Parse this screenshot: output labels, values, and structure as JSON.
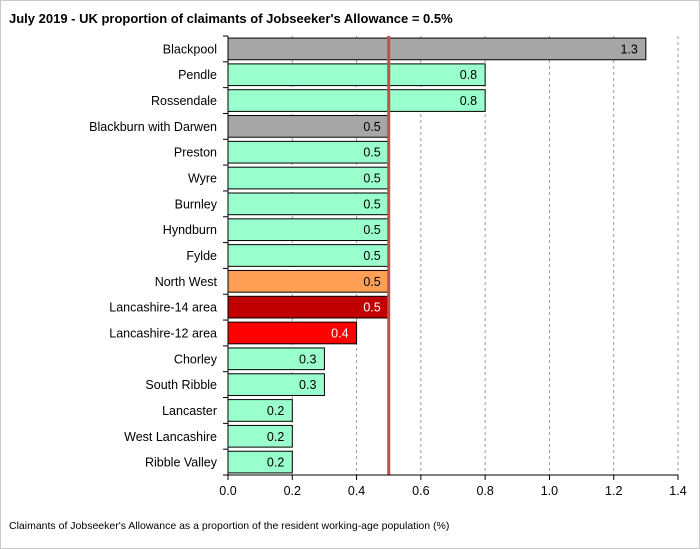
{
  "chart_data": {
    "type": "bar",
    "orientation": "horizontal",
    "title": "July 2019  - UK proportion of claimants of Jobseeker's Allowance = 0.5%",
    "footnote": "Claimants  of Jobseeker's Allowance as a proportion of the resident working-age population (%)",
    "categories": [
      "Blackpool",
      "Pendle",
      "Rossendale",
      "Blackburn with Darwen",
      "Preston",
      "Wyre",
      "Burnley",
      "Hyndburn",
      "Fylde",
      "North West",
      "Lancashire-14 area",
      "Lancashire-12 area",
      "Chorley",
      "South Ribble",
      "Lancaster",
      "West Lancashire",
      "Ribble Valley"
    ],
    "values": [
      1.3,
      0.8,
      0.8,
      0.5,
      0.5,
      0.5,
      0.5,
      0.5,
      0.5,
      0.5,
      0.5,
      0.4,
      0.3,
      0.3,
      0.2,
      0.2,
      0.2
    ],
    "value_labels": [
      "1.3",
      "0.8",
      "0.8",
      "0.5",
      "0.5",
      "0.5",
      "0.5",
      "0.5",
      "0.5",
      "0.5",
      "0.5",
      "0.4",
      "0.3",
      "0.3",
      "0.2",
      "0.2",
      "0.2"
    ],
    "bar_colors": [
      "#a6a6a6",
      "#99ffcc",
      "#99ffcc",
      "#a6a6a6",
      "#99ffcc",
      "#99ffcc",
      "#99ffcc",
      "#99ffcc",
      "#99ffcc",
      "#ff9f55",
      "#c00000",
      "#ff0000",
      "#99ffcc",
      "#99ffcc",
      "#99ffcc",
      "#99ffcc",
      "#99ffcc"
    ],
    "label_colors": [
      "#000000",
      "#000000",
      "#000000",
      "#000000",
      "#000000",
      "#000000",
      "#000000",
      "#000000",
      "#000000",
      "#000000",
      "#ffffff",
      "#ffffff",
      "#000000",
      "#000000",
      "#000000",
      "#000000",
      "#000000"
    ],
    "xlim": [
      0,
      1.4
    ],
    "x_ticks": [
      0,
      0.2,
      0.4,
      0.6,
      0.8,
      1.0,
      1.2,
      1.4
    ],
    "x_tick_labels": [
      "0.0",
      "0.2",
      "0.4",
      "0.6",
      "0.8",
      "1.0",
      "1.2",
      "1.4"
    ],
    "reference_line": {
      "value": 0.5,
      "color": "#c0504d"
    },
    "grid": "vertical-dashed",
    "legend": "none"
  }
}
